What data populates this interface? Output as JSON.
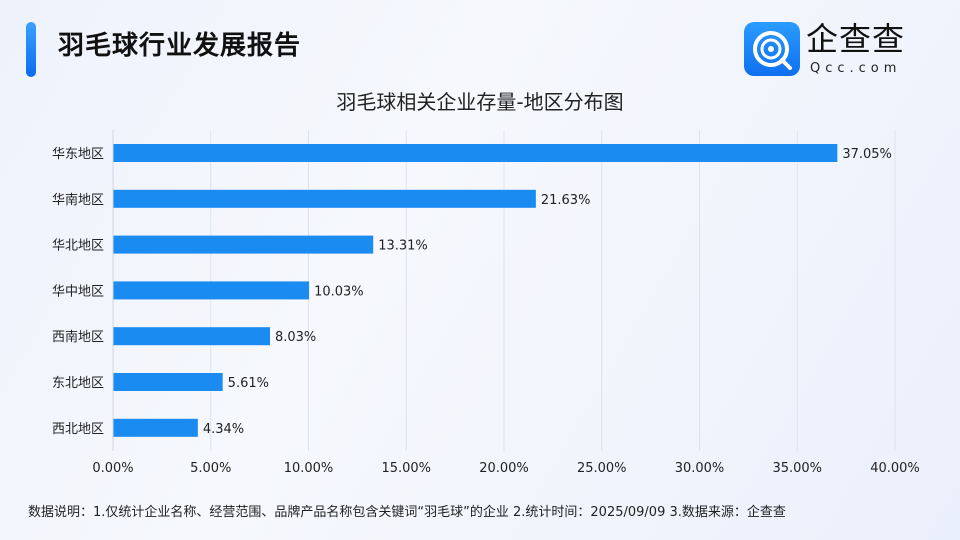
{
  "header": {
    "title": "羽毛球行业发展报告",
    "brand": "企查查",
    "brand_domain": "Qcc.com",
    "brand_icon": "qcc-logo-icon"
  },
  "colors": {
    "bar": "#1a8bf0",
    "accent": "#1677ff"
  },
  "chart_data": {
    "type": "bar",
    "orientation": "horizontal",
    "title": "羽毛球相关企业存量-地区分布图",
    "categories": [
      "华东地区",
      "华南地区",
      "华北地区",
      "华中地区",
      "西南地区",
      "东北地区",
      "西北地区"
    ],
    "values": [
      37.05,
      21.63,
      13.31,
      10.03,
      8.03,
      5.61,
      4.34
    ],
    "value_labels": [
      "37.05%",
      "21.63%",
      "13.31%",
      "10.03%",
      "8.03%",
      "5.61%",
      "4.34%"
    ],
    "xlim": [
      0,
      40
    ],
    "x_ticks": [
      "0.00%",
      "5.00%",
      "10.00%",
      "15.00%",
      "20.00%",
      "25.00%",
      "30.00%",
      "35.00%",
      "40.00%"
    ],
    "grid": "vertical"
  },
  "footer": {
    "note": "数据说明：1.仅统计企业名称、经营范围、品牌产品名称包含关键词“羽毛球”的企业   2.统计时间：2025/09/09    3.数据来源：企查查"
  }
}
